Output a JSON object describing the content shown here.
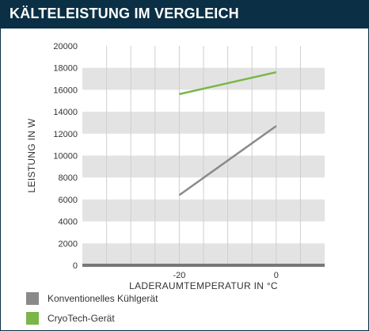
{
  "header": {
    "title": "KÄLTELEISTUNG IM VERGLEICH"
  },
  "colors": {
    "header_bg": "#0b2f45",
    "band": "#e3e3e3",
    "plot_bg": "#ffffff",
    "baseline": "#777777",
    "konventionell": "#8a8a8a",
    "cryotech": "#7ab648"
  },
  "chart_data": {
    "type": "line",
    "title": "KÄLTELEISTUNG IM VERGLEICH",
    "xlabel": "LADERAUMTEMPERATUR IN °C",
    "ylabel": "LEISTUNG IN W",
    "xlim": [
      -40,
      10
    ],
    "ylim": [
      0,
      20000
    ],
    "x_ticks": [
      -20,
      0
    ],
    "x_tick_labels": [
      "-20",
      "0"
    ],
    "x_grid": [
      -35,
      -30,
      -25,
      -20,
      -15,
      -10,
      -5,
      0,
      5
    ],
    "y_ticks": [
      0,
      2000,
      4000,
      6000,
      8000,
      10000,
      12000,
      14000,
      16000,
      18000,
      20000
    ],
    "y_tick_labels": [
      "0",
      "2000",
      "4000",
      "6000",
      "8000",
      "10000",
      "12000",
      "14000",
      "16000",
      "18000",
      "20000"
    ],
    "grid": true,
    "legend_position": "bottom-left",
    "series": [
      {
        "name": "Konventionelles Kühlgerät",
        "color": "#8a8a8a",
        "x": [
          -20,
          0
        ],
        "values": [
          6400,
          12700
        ]
      },
      {
        "name": "CryoTech-Gerät",
        "color": "#7ab648",
        "x": [
          -20,
          0
        ],
        "values": [
          15600,
          17600
        ]
      }
    ]
  }
}
